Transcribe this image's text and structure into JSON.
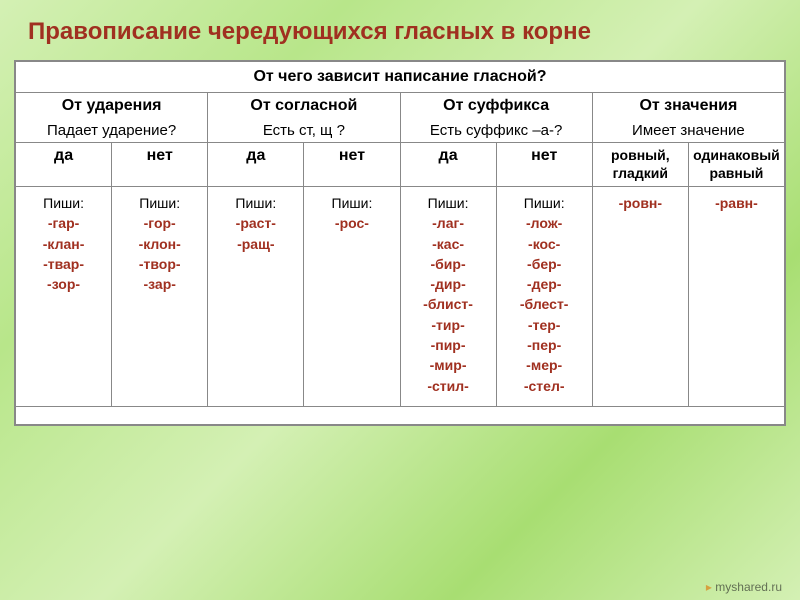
{
  "title": "Правописание чередующихся гласных в корне",
  "header_main": "От чего зависит написание гласной?",
  "cols": {
    "stress": "От ударения",
    "consonant": "От согласной",
    "suffix": "От суффикса",
    "meaning": "От значения"
  },
  "questions": {
    "stress": "Падает ударение?",
    "consonant": "Есть ст, щ ?",
    "suffix": "Есть суффикс –а-?",
    "meaning": "Имеет значение"
  },
  "yesno": {
    "yes": "да",
    "no": "нет"
  },
  "meanings": {
    "left": "ровный, гладкий",
    "right": "одинаковый равный"
  },
  "write_label": "Пиши:",
  "cells": {
    "stress_yes": [
      "-гар-",
      "-клан-",
      "-твар-",
      "-зор-"
    ],
    "stress_no": [
      "-гор-",
      "-клон-",
      "-твор-",
      "-зар-"
    ],
    "cons_yes": [
      "-раст-",
      "-ращ-"
    ],
    "cons_no": [
      "-рос-"
    ],
    "suffix_yes": [
      "-лаг-",
      "-кас-",
      "-бир-",
      "-дир-",
      "-блист-",
      "-тир-",
      "-пир-",
      "-мир-",
      "-стил-"
    ],
    "suffix_no": [
      "-лож-",
      "-кос-",
      "-бер-",
      "-дер-",
      "-блест-",
      "-тер-",
      "-пер-",
      "-мер-",
      "-стел-"
    ],
    "meaning_left": "-ровн-",
    "meaning_right": "-равн-"
  },
  "colors": {
    "title": "#a03020",
    "root": "#a03020",
    "border": "#888888",
    "bg_table": "#ffffff"
  },
  "watermark": {
    "text": "myshared",
    "suffix": ".ru"
  }
}
